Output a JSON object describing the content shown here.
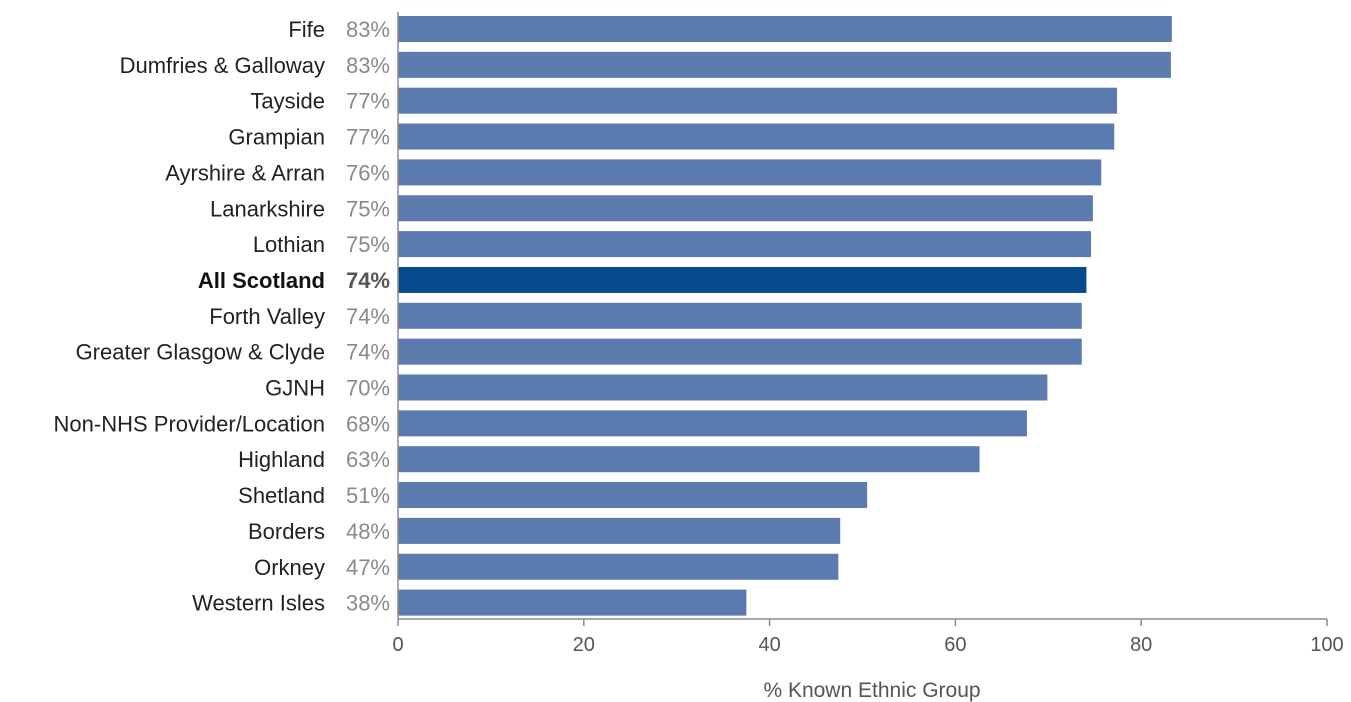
{
  "chart_data": {
    "type": "bar",
    "orientation": "horizontal",
    "categories": [
      "Fife",
      "Dumfries & Galloway",
      "Tayside",
      "Grampian",
      "Ayrshire & Arran",
      "Lanarkshire",
      "Lothian",
      "All Scotland",
      "Forth Valley",
      "Greater Glasgow & Clyde",
      "GJNH",
      "Non-NHS Provider/Location",
      "Highland",
      "Shetland",
      "Borders",
      "Orkney",
      "Western Isles"
    ],
    "values": [
      83.3,
      83.2,
      77.4,
      77.1,
      75.7,
      74.8,
      74.6,
      74.1,
      73.6,
      73.6,
      69.9,
      67.7,
      62.6,
      50.5,
      47.6,
      47.4,
      37.5
    ],
    "value_labels": [
      "83%",
      "83%",
      "77%",
      "77%",
      "76%",
      "75%",
      "75%",
      "74%",
      "74%",
      "74%",
      "70%",
      "68%",
      "63%",
      "51%",
      "48%",
      "47%",
      "38%"
    ],
    "highlight_category": "All Scotland",
    "xlabel": "% Known Ethnic Group",
    "ylabel": "",
    "title": "",
    "xlim": [
      0,
      100
    ],
    "xticks": [
      0,
      20,
      40,
      60,
      80,
      100
    ],
    "grid": false,
    "legend": "none",
    "colors": {
      "bar": "#5b7aad",
      "bar_highlight": "#054a8a",
      "axis": "#8c8c8c"
    }
  }
}
